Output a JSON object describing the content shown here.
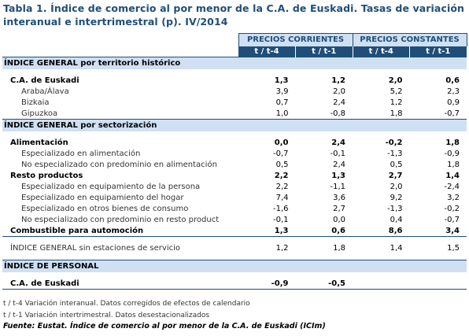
{
  "title": "Tabla 1. Índice de comercio al por menor de la C.A. de Euskadi. Tasas de variación interanual e intertrimestral (p). IV/2014",
  "header": {
    "group1": "PRECIOS CORRIENTES",
    "group2": "PRECIOS CONSTANTES",
    "sub": [
      "t / t-4",
      "t / t-1",
      "t / t-4",
      "t / t-1"
    ]
  },
  "sections": {
    "territorio": {
      "title": "ÍNDICE GENERAL por territorio histórico",
      "rows": [
        {
          "label": "C.A. de Euskadi",
          "v": [
            "1,3",
            "1,2",
            "2,0",
            "0,6"
          ]
        },
        {
          "label": "Araba/Álava",
          "v": [
            "3,9",
            "2,0",
            "5,2",
            "2,3"
          ]
        },
        {
          "label": "Bizkaia",
          "v": [
            "0,7",
            "2,4",
            "1,2",
            "0,9"
          ]
        },
        {
          "label": "Gipuzkoa",
          "v": [
            "1,0",
            "-0,8",
            "1,8",
            "-0,7"
          ]
        }
      ]
    },
    "sectorizacion": {
      "title": "ÍNDICE GENERAL por sectorización",
      "rows": [
        {
          "label": "Alimentación",
          "v": [
            "0,0",
            "2,4",
            "-0,2",
            "1,8"
          ]
        },
        {
          "label": "Especializado en alimentación",
          "v": [
            "-0,7",
            "-0,1",
            "-1,3",
            "-0,9"
          ]
        },
        {
          "label": "No especializado con predominio en alimentación",
          "v": [
            "0,5",
            "2,4",
            "0,5",
            "1,8"
          ]
        },
        {
          "label": "Resto productos",
          "v": [
            "2,2",
            "1,3",
            "2,7",
            "1,4"
          ]
        },
        {
          "label": "Especializado en equipamiento de la persona",
          "v": [
            "2,2",
            "-1,1",
            "2,0",
            "-2,4"
          ]
        },
        {
          "label": "Especializado en equipamiento del hogar",
          "v": [
            "7,4",
            "3,6",
            "9,2",
            "3,2"
          ]
        },
        {
          "label": "Especializado en otros bienes de consumo",
          "v": [
            "-1,6",
            "2,7",
            "-1,3",
            "-0,2"
          ]
        },
        {
          "label": "No especializado con predominio en resto product",
          "v": [
            "-0,1",
            "0,0",
            "0,4",
            "-0,7"
          ]
        },
        {
          "label": "Combustible para automoción",
          "v": [
            "1,3",
            "0,6",
            "8,6",
            "3,4"
          ]
        }
      ]
    },
    "sin_estaciones": {
      "label": "ÍNDICE GENERAL sin estaciones de servicio",
      "v": [
        "1,2",
        "1,8",
        "1,4",
        "1,5"
      ]
    },
    "personal": {
      "title": "ÍNDICE DE PERSONAL",
      "rows": [
        {
          "label": "C.A. de Euskadi",
          "v": [
            "-0,9",
            "-0,5",
            "",
            ""
          ]
        }
      ]
    }
  },
  "notes": [
    "t / t-4 Variación interanual. Datos corregidos de efectos de calendario",
    "t / t-1 Variación intertrimestral. Datos desestacionalizados"
  ],
  "source": "Fuente: Eustat. Índice de comercio al por menor de la C.A. de Euskadi (ICIm)"
}
